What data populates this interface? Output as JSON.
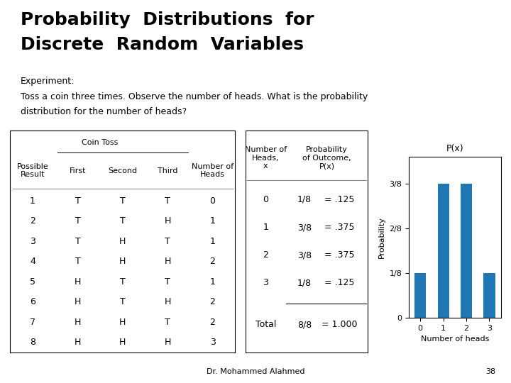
{
  "chart_data": {
    "type": "bar",
    "title": "P(x)",
    "xlabel": "Number of heads",
    "ylabel": "Probability",
    "x": [
      0,
      1,
      2,
      3
    ],
    "values": [
      0.125,
      0.375,
      0.375,
      0.125
    ],
    "xlim": [
      -0.5,
      3.5
    ],
    "xticks": [
      0,
      1,
      2,
      3
    ],
    "ylim": [
      0,
      0.45
    ],
    "yticks": [
      0,
      {
        "value": 0.125,
        "label": "1/8"
      },
      {
        "value": 0.25,
        "label": "2/8"
      },
      {
        "value": 0.375,
        "label": "3/8"
      }
    ],
    "annotations": {
      "heading": [
        "Probability  Distributions  for",
        "Discrete  Random  Variables"
      ],
      "experiment": [
        "Experiment:",
        "Toss a coin three times. Observe the number of heads. What is the probability",
        "distribution for the number of heads?"
      ],
      "footer": [
        "Dr. Mohammed Alahmed",
        "38"
      ]
    },
    "tables": [
      {
        "title": "Coin Toss",
        "columns": [
          "Possible\nResult",
          "First",
          "Second",
          "Third",
          "Number of\nHeads"
        ],
        "rows": [
          [
            "1",
            "T",
            "T",
            "T",
            "0"
          ],
          [
            "2",
            "T",
            "T",
            "H",
            "1"
          ],
          [
            "3",
            "T",
            "H",
            "T",
            "1"
          ],
          [
            "4",
            "T",
            "H",
            "H",
            "2"
          ],
          [
            "5",
            "H",
            "T",
            "T",
            "1"
          ],
          [
            "6",
            "H",
            "T",
            "H",
            "2"
          ],
          [
            "7",
            "H",
            "H",
            "T",
            "2"
          ],
          [
            "8",
            "H",
            "H",
            "H",
            "3"
          ]
        ]
      },
      {
        "columns": [
          "Number of\nHeads,\nx",
          "Probability\nof Outcome,\nP(x)"
        ],
        "rows": [
          [
            "0",
            "1/8",
            "= .125"
          ],
          [
            "1",
            "3/8",
            "= .375"
          ],
          [
            "2",
            "3/8",
            "= .375"
          ],
          [
            "3",
            "1/8",
            "= .125"
          ],
          [
            "Total",
            "8/8",
            "= 1.000"
          ]
        ]
      }
    ]
  }
}
